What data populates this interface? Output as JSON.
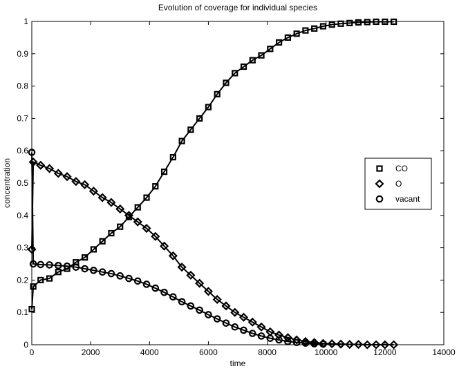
{
  "chart_data": {
    "type": "line",
    "title": "Evolution of coverage for individual species",
    "xlabel": "time",
    "ylabel": "concentration",
    "xlim": [
      0,
      14000
    ],
    "ylim": [
      0,
      1
    ],
    "x_ticks": [
      0,
      2000,
      4000,
      6000,
      8000,
      10000,
      12000,
      14000
    ],
    "y_ticks": [
      0,
      0.1,
      0.2,
      0.3,
      0.4,
      0.5,
      0.6,
      0.7,
      0.8,
      0.9,
      1
    ],
    "x_tick_labels": [
      "0",
      "2000",
      "4000",
      "6000",
      "8000",
      "10000",
      "12000",
      "14000"
    ],
    "y_tick_labels": [
      "0",
      "0.1",
      "0.2",
      "0.3",
      "0.4",
      "0.5",
      "0.6",
      "0.7",
      "0.8",
      "0.9",
      "1"
    ],
    "grid": false,
    "legend_position": "right-middle",
    "line_color": "#000000",
    "series": [
      {
        "name": "CO",
        "marker": "square",
        "x": [
          0,
          50,
          300,
          600,
          900,
          1200,
          1500,
          1800,
          2100,
          2400,
          2700,
          3000,
          3300,
          3600,
          3900,
          4200,
          4500,
          4800,
          5100,
          5400,
          5700,
          6000,
          6300,
          6600,
          6900,
          7200,
          7500,
          7800,
          8100,
          8400,
          8700,
          9000,
          9300,
          9600,
          9900,
          10200,
          10500,
          10800,
          11100,
          11400,
          11700,
          12000,
          12300
        ],
        "y": [
          0.11,
          0.18,
          0.2,
          0.205,
          0.225,
          0.235,
          0.255,
          0.27,
          0.295,
          0.32,
          0.345,
          0.365,
          0.395,
          0.425,
          0.455,
          0.49,
          0.535,
          0.58,
          0.63,
          0.665,
          0.7,
          0.735,
          0.775,
          0.81,
          0.84,
          0.86,
          0.88,
          0.895,
          0.915,
          0.935,
          0.95,
          0.962,
          0.972,
          0.978,
          0.985,
          0.99,
          0.993,
          0.995,
          0.997,
          0.998,
          0.999,
          0.999,
          0.999
        ]
      },
      {
        "name": "O",
        "marker": "diamond",
        "x": [
          0,
          50,
          300,
          600,
          900,
          1200,
          1500,
          1800,
          2100,
          2400,
          2700,
          3000,
          3300,
          3600,
          3900,
          4200,
          4500,
          4800,
          5100,
          5400,
          5700,
          6000,
          6300,
          6600,
          6900,
          7200,
          7500,
          7800,
          8100,
          8400,
          8700,
          9000,
          9300,
          9600,
          9900,
          10200,
          10500,
          10800,
          11100,
          11400,
          11700,
          12000,
          12300
        ],
        "y": [
          0.295,
          0.565,
          0.555,
          0.545,
          0.53,
          0.52,
          0.505,
          0.495,
          0.475,
          0.455,
          0.44,
          0.42,
          0.4,
          0.38,
          0.36,
          0.335,
          0.305,
          0.275,
          0.24,
          0.215,
          0.19,
          0.165,
          0.14,
          0.12,
          0.1,
          0.085,
          0.07,
          0.055,
          0.04,
          0.03,
          0.022,
          0.015,
          0.01,
          0.007,
          0.004,
          0.003,
          0.002,
          0.001,
          0.001,
          0,
          0,
          0,
          0
        ]
      },
      {
        "name": "vacant",
        "marker": "circle",
        "x": [
          0,
          50,
          300,
          600,
          900,
          1200,
          1500,
          1800,
          2100,
          2400,
          2700,
          3000,
          3300,
          3600,
          3900,
          4200,
          4500,
          4800,
          5100,
          5400,
          5700,
          6000,
          6300,
          6600,
          6900,
          7200,
          7500,
          7800,
          8100,
          8400,
          8700,
          9000,
          9300,
          9600,
          9900
        ],
        "y": [
          0.595,
          0.25,
          0.248,
          0.247,
          0.245,
          0.243,
          0.24,
          0.235,
          0.23,
          0.225,
          0.22,
          0.213,
          0.205,
          0.197,
          0.187,
          0.175,
          0.162,
          0.148,
          0.133,
          0.12,
          0.107,
          0.093,
          0.08,
          0.067,
          0.055,
          0.045,
          0.035,
          0.027,
          0.02,
          0.015,
          0.01,
          0.007,
          0.005,
          0.003,
          0.002
        ]
      }
    ]
  }
}
